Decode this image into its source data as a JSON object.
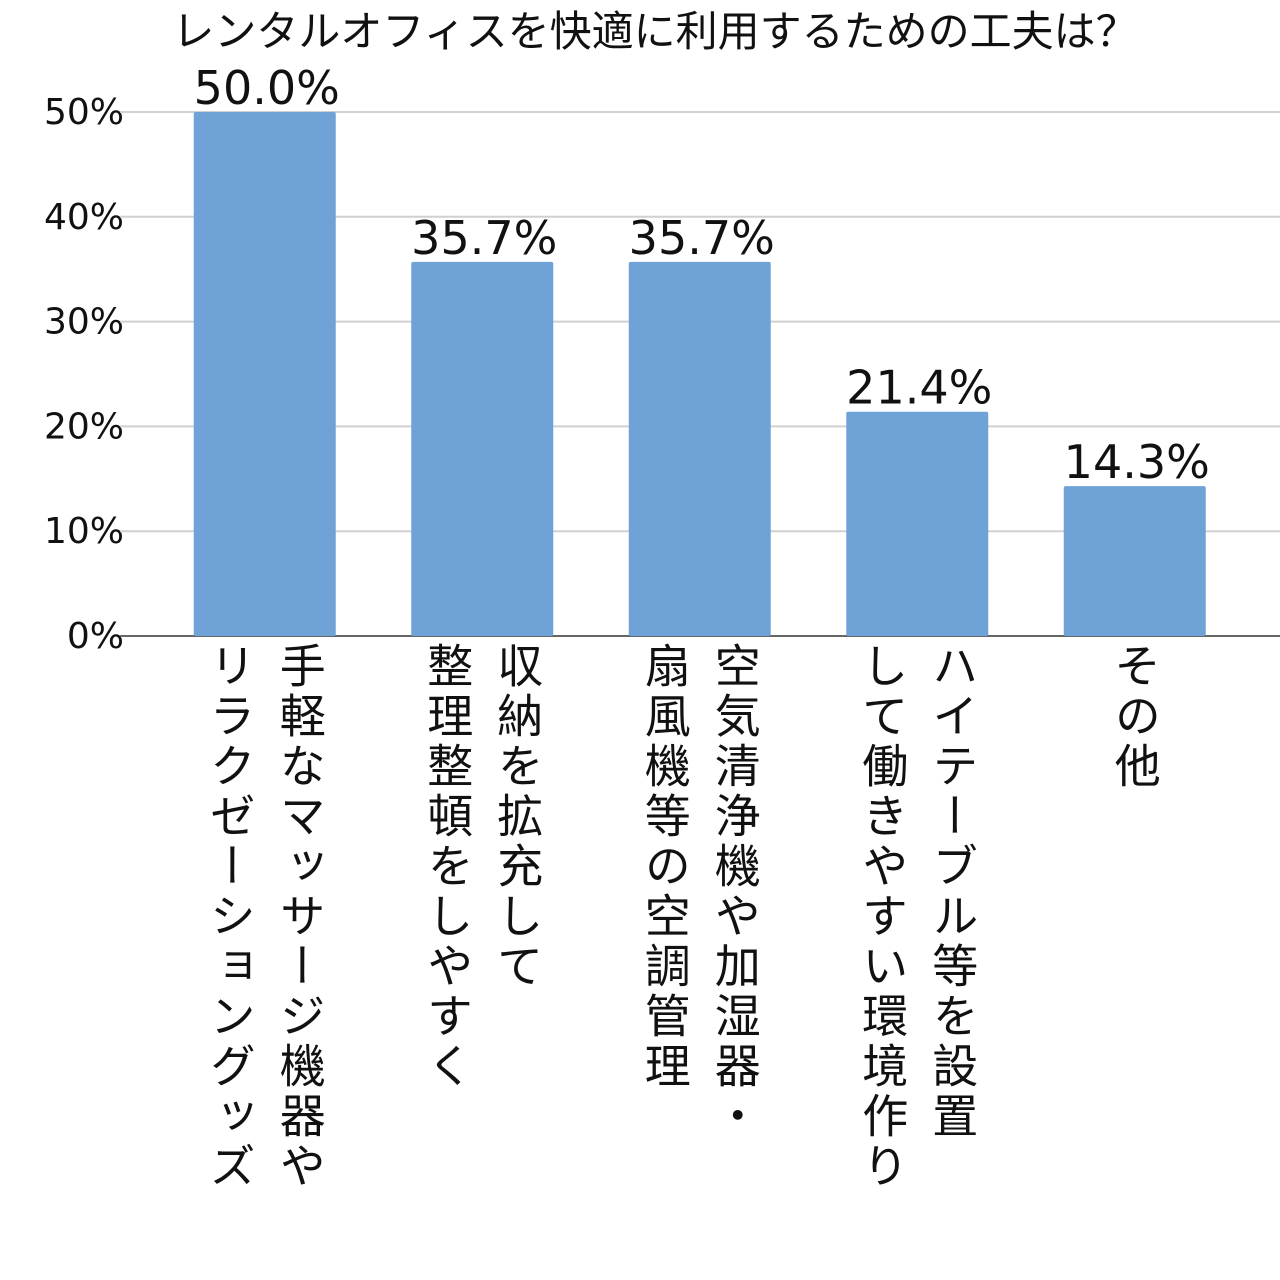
{
  "chart_data": {
    "type": "bar",
    "title": "レンタルオフィスを快適に利用するための工夫は？",
    "categories": [
      "手軽なマッサージ機器や\nリラクゼーショングッズ",
      "収納を拡充して\n整理整頓をしやすく",
      "空気清浄機や加湿器・\n扇風機等の空調管理",
      "ハイテーブル等を設置\nして働きやすい環境作り",
      "その他"
    ],
    "values": [
      50.0,
      35.7,
      35.7,
      21.4,
      14.3
    ],
    "value_labels": [
      "50.0%",
      "35.7%",
      "35.7%",
      "21.4%",
      "14.3%"
    ],
    "color": "#6fa3d8",
    "ylim": [
      0,
      50
    ],
    "yticks": [
      {
        "value": 0,
        "label": "0%"
      },
      {
        "value": 10,
        "label": "10%"
      },
      {
        "value": 20,
        "label": "20%"
      },
      {
        "value": 30,
        "label": "30%"
      },
      {
        "value": 40,
        "label": "40%"
      },
      {
        "value": 50,
        "label": "50%"
      }
    ],
    "grid": true
  }
}
